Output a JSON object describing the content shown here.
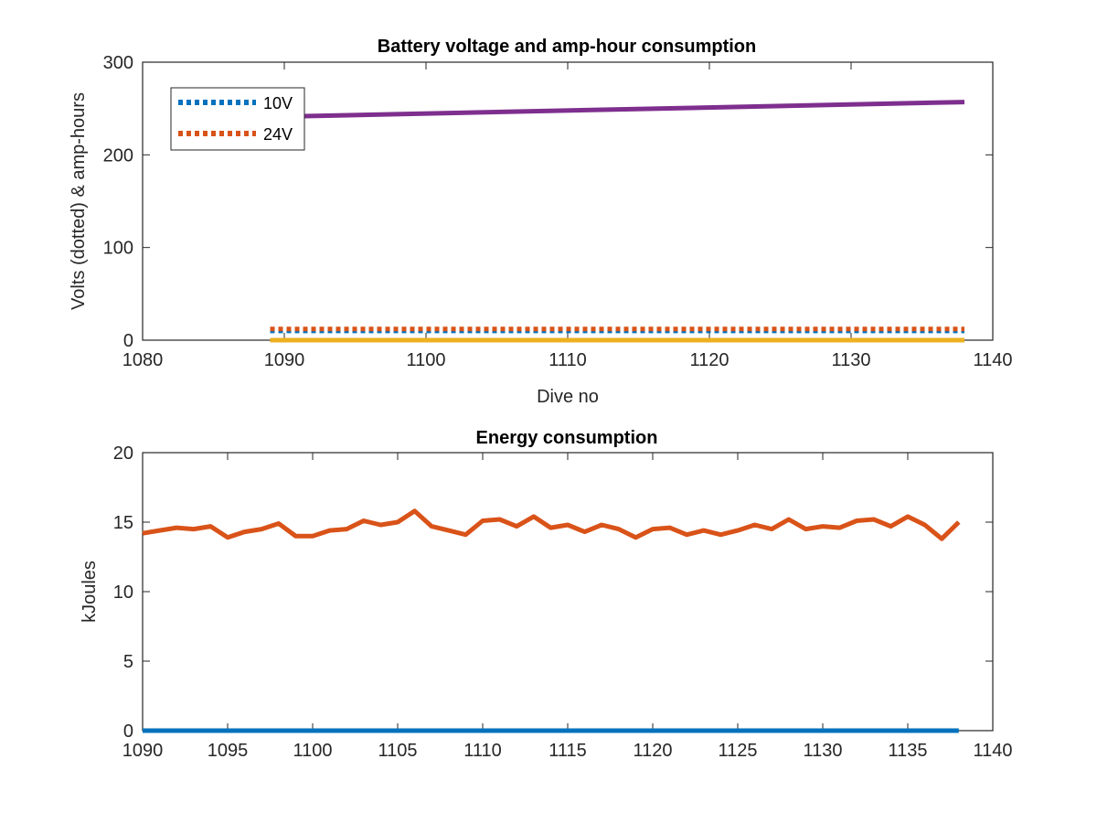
{
  "chart_data": [
    {
      "type": "line",
      "title": "Battery voltage and amp-hour consumption",
      "xlabel": "Dive no",
      "ylabel": "Volts (dotted) & amp-hours",
      "xlim": [
        1080,
        1140
      ],
      "ylim": [
        0,
        300
      ],
      "xticks": [
        "1080",
        "1090",
        "1100",
        "1110",
        "1120",
        "1130",
        "1140"
      ],
      "yticks": [
        "0",
        "100",
        "200",
        "300"
      ],
      "grid": false,
      "legend": {
        "placement": "top-left",
        "entries": [
          "10V",
          "24V"
        ]
      },
      "series": [
        {
          "name": "10V",
          "style": "dotted",
          "color": "#0072BD",
          "x": [
            1089,
            1138
          ],
          "y": [
            10,
            10
          ]
        },
        {
          "name": "24V",
          "style": "dotted",
          "color": "#D95319",
          "x": [
            1089,
            1138
          ],
          "y": [
            12,
            12
          ]
        },
        {
          "style": "solid",
          "color": "#EDB120",
          "x": [
            1089,
            1138
          ],
          "y": [
            0,
            0
          ]
        },
        {
          "style": "solid",
          "color": "#7E2F8E",
          "x": [
            1089,
            1138
          ],
          "y": [
            241,
            257
          ]
        }
      ]
    },
    {
      "type": "line",
      "title": "Energy consumption",
      "xlabel": "",
      "ylabel": "kJoules",
      "xlim": [
        1090,
        1140
      ],
      "ylim": [
        0,
        20
      ],
      "xticks": [
        "1090",
        "1095",
        "1100",
        "1105",
        "1110",
        "1115",
        "1120",
        "1125",
        "1130",
        "1135",
        "1140"
      ],
      "yticks": [
        "0",
        "5",
        "10",
        "15",
        "20"
      ],
      "grid": false,
      "series": [
        {
          "style": "solid",
          "color": "#0072BD",
          "x": [
            1090,
            1138
          ],
          "y": [
            0,
            0
          ]
        },
        {
          "style": "solid",
          "color": "#D95319",
          "x": [
            1090,
            1091,
            1092,
            1093,
            1094,
            1095,
            1096,
            1097,
            1098,
            1099,
            1100,
            1101,
            1102,
            1103,
            1104,
            1105,
            1106,
            1107,
            1108,
            1109,
            1110,
            1111,
            1112,
            1113,
            1114,
            1115,
            1116,
            1117,
            1118,
            1119,
            1120,
            1121,
            1122,
            1123,
            1124,
            1125,
            1126,
            1127,
            1128,
            1129,
            1130,
            1131,
            1132,
            1133,
            1134,
            1135,
            1136,
            1137,
            1138
          ],
          "y": [
            14.2,
            14.4,
            14.6,
            14.5,
            14.7,
            13.9,
            14.3,
            14.5,
            14.9,
            14.0,
            14.0,
            14.4,
            14.5,
            15.1,
            14.8,
            15.0,
            15.8,
            14.7,
            14.4,
            14.1,
            15.1,
            15.2,
            14.7,
            15.4,
            14.6,
            14.8,
            14.3,
            14.8,
            14.5,
            13.9,
            14.5,
            14.6,
            14.1,
            14.4,
            14.1,
            14.4,
            14.8,
            14.5,
            15.2,
            14.5,
            14.7,
            14.6,
            15.1,
            15.2,
            14.7,
            15.4,
            14.8,
            13.8,
            15.0
          ]
        }
      ]
    }
  ]
}
